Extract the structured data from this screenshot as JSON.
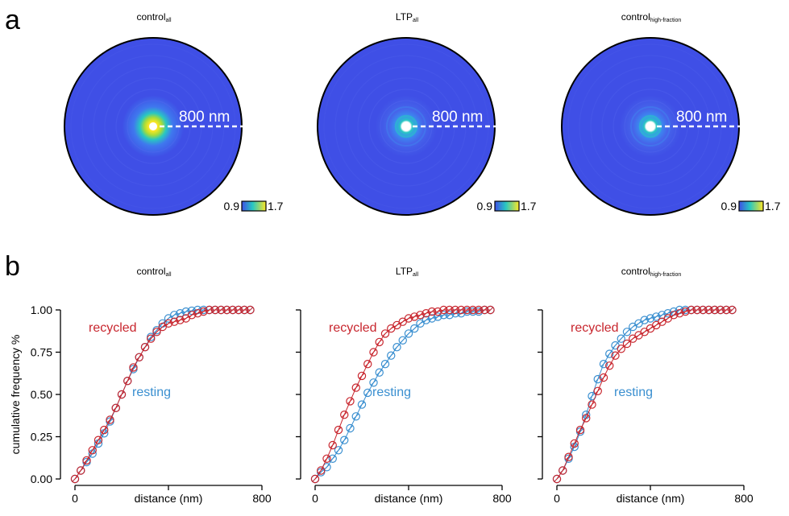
{
  "panel_labels": {
    "a": "a",
    "b": "b"
  },
  "heatmaps": [
    {
      "title_main": "control",
      "title_sub": "all",
      "scale_label": "800 nm",
      "cbar_min": "0.9",
      "cbar_max": "1.7",
      "center_peak": 1.7,
      "halo": 0.35
    },
    {
      "title_main": "LTP",
      "title_sub": "all",
      "scale_label": "800 nm",
      "cbar_min": "0.9",
      "cbar_max": "1.7",
      "center_peak": 1.25,
      "halo": 0.18
    },
    {
      "title_main": "control",
      "title_sub": "high-fraction",
      "scale_label": "800 nm",
      "cbar_min": "0.9",
      "cbar_max": "1.7",
      "center_peak": 1.25,
      "halo": 0.2
    }
  ],
  "colors": {
    "resting": "#3a8fd0",
    "recycled": "#c8262e",
    "map_low": "#3f4fe6",
    "map_mid": "#28c7c2",
    "map_high": "#fde725"
  },
  "chart_data": [
    {
      "type": "line",
      "title_main": "control",
      "title_sub": "all",
      "ylabel": "cumulative frequency %",
      "xlabel": "distance (nm)",
      "xlim": [
        0,
        800
      ],
      "ylim": [
        0,
        1
      ],
      "xticks": [
        "0",
        "400",
        "800"
      ],
      "yticks": [
        "0.00",
        "0.25",
        "0.50",
        "0.75",
        "1.00"
      ],
      "series": [
        {
          "name": "resting",
          "x": [
            0,
            25,
            50,
            75,
            100,
            125,
            150,
            175,
            200,
            225,
            250,
            275,
            300,
            325,
            350,
            375,
            400,
            425,
            450,
            475,
            500,
            525,
            550,
            575,
            600,
            625,
            650,
            675,
            700,
            725,
            750
          ],
          "values": [
            0,
            0.05,
            0.1,
            0.15,
            0.21,
            0.27,
            0.34,
            0.42,
            0.5,
            0.58,
            0.65,
            0.72,
            0.78,
            0.84,
            0.88,
            0.92,
            0.95,
            0.97,
            0.98,
            0.99,
            0.995,
            1,
            1,
            1,
            1,
            1,
            1,
            1,
            1,
            1,
            1
          ]
        },
        {
          "name": "recycled",
          "x": [
            0,
            25,
            50,
            75,
            100,
            125,
            150,
            175,
            200,
            225,
            250,
            275,
            300,
            325,
            350,
            375,
            400,
            425,
            450,
            475,
            500,
            525,
            550,
            575,
            600,
            625,
            650,
            675,
            700,
            725,
            750
          ],
          "values": [
            0,
            0.05,
            0.11,
            0.17,
            0.23,
            0.29,
            0.35,
            0.42,
            0.5,
            0.58,
            0.66,
            0.72,
            0.78,
            0.83,
            0.87,
            0.9,
            0.92,
            0.93,
            0.94,
            0.95,
            0.97,
            0.98,
            0.99,
            1,
            1,
            1,
            1,
            1,
            1,
            1,
            1
          ]
        }
      ],
      "labels": {
        "recycled": "recycled",
        "resting": "resting"
      }
    },
    {
      "type": "line",
      "title_main": "LTP",
      "title_sub": "all",
      "xlabel": "distance (nm)",
      "xlim": [
        0,
        800
      ],
      "ylim": [
        0,
        1
      ],
      "xticks": [
        "0",
        "400",
        "800"
      ],
      "series": [
        {
          "name": "resting",
          "x": [
            0,
            25,
            50,
            75,
            100,
            125,
            150,
            175,
            200,
            225,
            250,
            275,
            300,
            325,
            350,
            375,
            400,
            425,
            450,
            475,
            500,
            525,
            550,
            575,
            600,
            625,
            650,
            675,
            700,
            725,
            750
          ],
          "values": [
            0,
            0.04,
            0.07,
            0.12,
            0.17,
            0.23,
            0.3,
            0.37,
            0.44,
            0.51,
            0.57,
            0.63,
            0.68,
            0.73,
            0.78,
            0.82,
            0.86,
            0.89,
            0.92,
            0.94,
            0.95,
            0.96,
            0.97,
            0.97,
            0.98,
            0.98,
            0.99,
            0.99,
            0.99,
            1,
            1
          ]
        },
        {
          "name": "recycled",
          "x": [
            0,
            25,
            50,
            75,
            100,
            125,
            150,
            175,
            200,
            225,
            250,
            275,
            300,
            325,
            350,
            375,
            400,
            425,
            450,
            475,
            500,
            525,
            550,
            575,
            600,
            625,
            650,
            675,
            700,
            725,
            750
          ],
          "values": [
            0,
            0.05,
            0.12,
            0.2,
            0.29,
            0.38,
            0.46,
            0.54,
            0.61,
            0.68,
            0.75,
            0.81,
            0.86,
            0.89,
            0.91,
            0.93,
            0.95,
            0.96,
            0.97,
            0.98,
            0.99,
            0.99,
            1,
            1,
            1,
            1,
            1,
            1,
            1,
            1,
            1
          ]
        }
      ],
      "labels": {
        "recycled": "recycled",
        "resting": "resting"
      }
    },
    {
      "type": "line",
      "title_main": "control",
      "title_sub": "high-fraction",
      "xlabel": "distance (nm)",
      "xlim": [
        0,
        800
      ],
      "ylim": [
        0,
        1
      ],
      "xticks": [
        "0",
        "400",
        "800"
      ],
      "series": [
        {
          "name": "resting",
          "x": [
            0,
            25,
            50,
            75,
            100,
            125,
            150,
            175,
            200,
            225,
            250,
            275,
            300,
            325,
            350,
            375,
            400,
            425,
            450,
            475,
            500,
            525,
            550,
            575,
            600,
            625,
            650,
            675,
            700,
            725,
            750
          ],
          "values": [
            0,
            0.05,
            0.12,
            0.19,
            0.28,
            0.38,
            0.49,
            0.59,
            0.68,
            0.74,
            0.79,
            0.83,
            0.87,
            0.9,
            0.92,
            0.94,
            0.95,
            0.96,
            0.97,
            0.98,
            0.99,
            1,
            1,
            1,
            1,
            1,
            1,
            1,
            1,
            1,
            1
          ]
        },
        {
          "name": "recycled",
          "x": [
            0,
            25,
            50,
            75,
            100,
            125,
            150,
            175,
            200,
            225,
            250,
            275,
            300,
            325,
            350,
            375,
            400,
            425,
            450,
            475,
            500,
            525,
            550,
            575,
            600,
            625,
            650,
            675,
            700,
            725,
            750
          ],
          "values": [
            0,
            0.05,
            0.13,
            0.21,
            0.29,
            0.36,
            0.44,
            0.52,
            0.6,
            0.67,
            0.73,
            0.77,
            0.8,
            0.83,
            0.85,
            0.87,
            0.89,
            0.91,
            0.93,
            0.95,
            0.97,
            0.98,
            0.99,
            1,
            1,
            1,
            1,
            1,
            1,
            1,
            1
          ]
        }
      ],
      "labels": {
        "recycled": "recycled",
        "resting": "resting"
      }
    }
  ]
}
